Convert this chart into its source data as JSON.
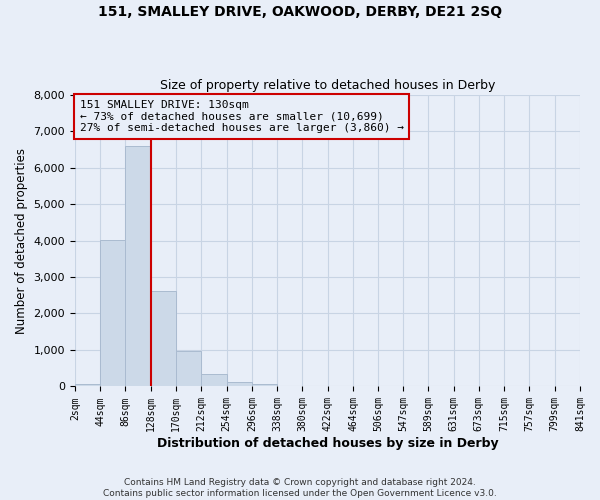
{
  "title": "151, SMALLEY DRIVE, OAKWOOD, DERBY, DE21 2SQ",
  "subtitle": "Size of property relative to detached houses in Derby",
  "xlabel": "Distribution of detached houses by size in Derby",
  "ylabel": "Number of detached properties",
  "bin_edges": [
    2,
    44,
    86,
    128,
    170,
    212,
    254,
    296,
    338,
    380,
    422,
    464,
    506,
    547,
    589,
    631,
    673,
    715,
    757,
    799,
    841
  ],
  "bar_heights": [
    55,
    4010,
    6580,
    2620,
    960,
    330,
    130,
    60,
    0,
    0,
    0,
    0,
    0,
    0,
    0,
    0,
    0,
    0,
    0,
    0
  ],
  "bar_color": "#ccd9e8",
  "bar_edge_color": "#aabbd0",
  "property_line_x": 128,
  "property_line_color": "#cc0000",
  "annotation_title": "151 SMALLEY DRIVE: 130sqm",
  "annotation_line1": "← 73% of detached houses are smaller (10,699)",
  "annotation_line2": "27% of semi-detached houses are larger (3,860) →",
  "annotation_box_edgecolor": "#cc0000",
  "ylim": [
    0,
    8000
  ],
  "tick_labels": [
    "2sqm",
    "44sqm",
    "86sqm",
    "128sqm",
    "170sqm",
    "212sqm",
    "254sqm",
    "296sqm",
    "338sqm",
    "380sqm",
    "422sqm",
    "464sqm",
    "506sqm",
    "547sqm",
    "589sqm",
    "631sqm",
    "673sqm",
    "715sqm",
    "757sqm",
    "799sqm",
    "841sqm"
  ],
  "footer1": "Contains HM Land Registry data © Crown copyright and database right 2024.",
  "footer2": "Contains public sector information licensed under the Open Government Licence v3.0.",
  "bg_color": "#e8eef8",
  "grid_color": "#c8d4e4",
  "title_fontsize": 10,
  "subtitle_fontsize": 9
}
